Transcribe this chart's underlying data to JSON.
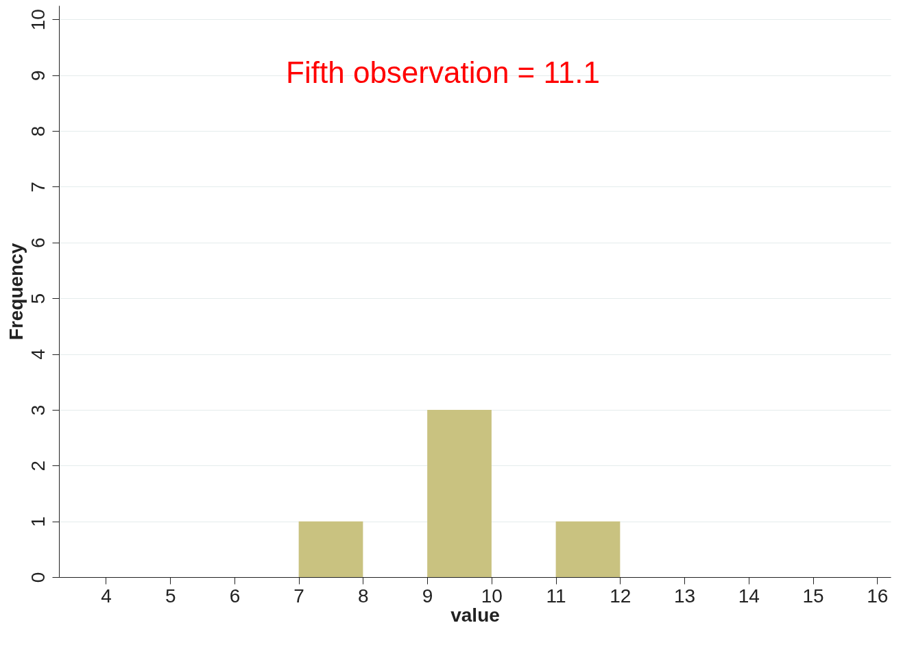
{
  "chart_data": {
    "type": "histogram",
    "xlabel": "value",
    "ylabel": "Frequency",
    "bins": [
      7,
      8,
      9,
      10,
      11,
      12
    ],
    "values": [
      1,
      0,
      3,
      0,
      1
    ],
    "color": "#c9c280",
    "xlim": [
      3.27,
      16.21
    ],
    "xticks": [
      4,
      5,
      6,
      7,
      8,
      9,
      10,
      11,
      12,
      13,
      14,
      15,
      16
    ],
    "ylim": [
      0,
      10.25
    ],
    "yticks": [
      0,
      1,
      2,
      3,
      4,
      5,
      6,
      7,
      8,
      9,
      10
    ],
    "grid": "y",
    "annotations": [
      "Fifth observation = 11.1"
    ]
  }
}
